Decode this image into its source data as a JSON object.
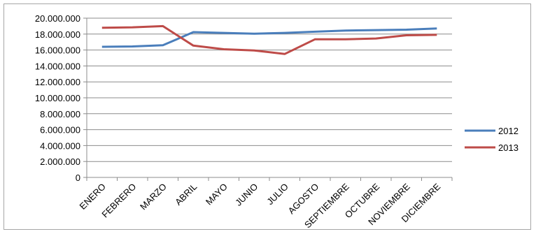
{
  "chart_data": {
    "type": "line",
    "categories": [
      "ENERO",
      "FEBRERO",
      "MARZO",
      "ABRIL",
      "MAYO",
      "JUNIO",
      "JULIO",
      "AGOSTO",
      "SEPTIEMBRE",
      "OCTUBRE",
      "NOVIEMBRE",
      "DICIEMBRE"
    ],
    "series": [
      {
        "name": "2012",
        "color": "#4a7ebb",
        "values": [
          16400000,
          16450000,
          16600000,
          18250000,
          18150000,
          18050000,
          18150000,
          18300000,
          18450000,
          18500000,
          18550000,
          18700000
        ]
      },
      {
        "name": "2013",
        "color": "#be4b48",
        "values": [
          18800000,
          18850000,
          19000000,
          16550000,
          16100000,
          15950000,
          15500000,
          17350000,
          17350000,
          17450000,
          17850000,
          17900000
        ]
      }
    ],
    "y_ticks": [
      "0",
      "2.000.000",
      "4.000.000",
      "6.000.000",
      "8.000.000",
      "10.000.000",
      "12.000.000",
      "14.000.000",
      "16.000.000",
      "18.000.000",
      "20.000.000"
    ],
    "ylim": [
      0,
      20000000
    ],
    "grid": true,
    "legend_position": "right",
    "title": "",
    "xlabel": "",
    "ylabel": ""
  }
}
